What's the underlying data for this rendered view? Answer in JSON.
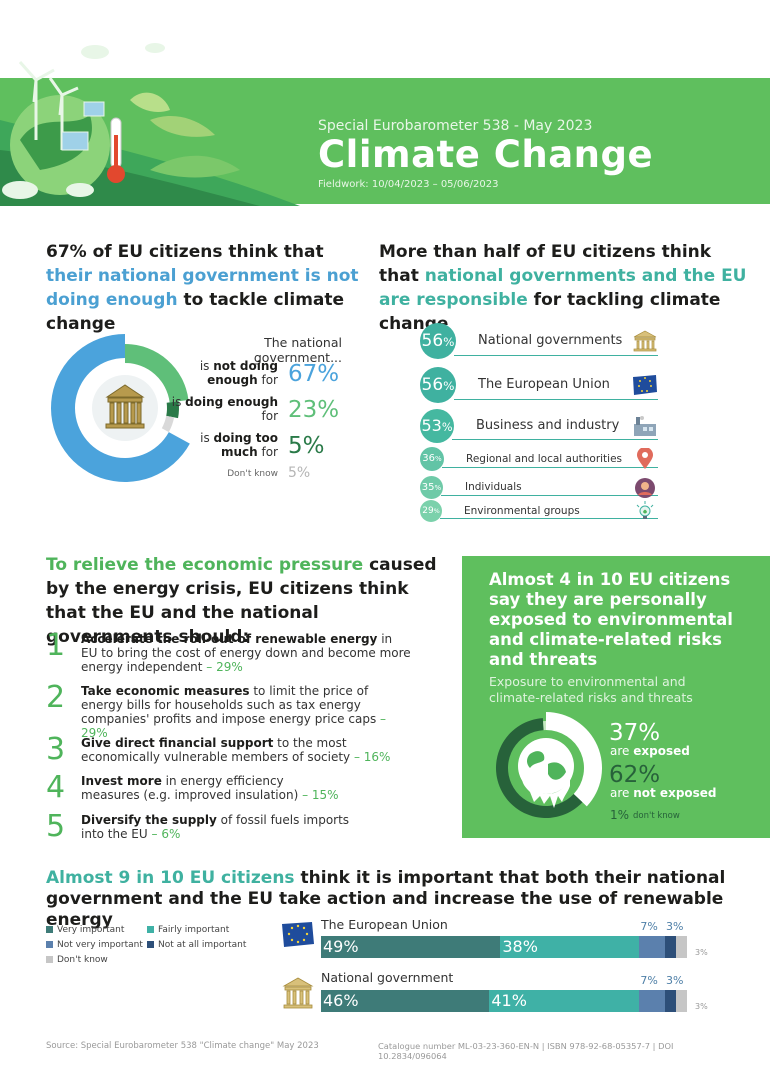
{
  "header": {
    "subtitle": "Special Eurobarometer 538 - May 2023",
    "title": "Climate Change",
    "fieldwork": "Fieldwork: 10/04/2023 – 05/06/2023"
  },
  "section1": {
    "title_pre": "67% of EU citizens think that ",
    "title_highlight": "their national government is not doing enough",
    "title_post": " to tackle climate change",
    "header": "The national government...",
    "rows": [
      {
        "pre": "is ",
        "bold": "not doing enough",
        "post": " for",
        "value": "67%"
      },
      {
        "pre": "is ",
        "bold": "doing enough",
        "post": " for",
        "value": "23%"
      },
      {
        "pre": "is ",
        "bold": "doing too much",
        "post": " for",
        "value": "5%"
      }
    ],
    "dont_know_label": "Don't know",
    "dont_know_value": "5%",
    "chart_values": [
      67,
      23,
      5,
      5
    ],
    "colors": [
      "#4ba3dc",
      "#5fbf79",
      "#2a7a48",
      "#d9d9d9"
    ]
  },
  "section2": {
    "title_pre": "More than half of EU citizens think that ",
    "title_highlight": "national governments and the EU are responsible",
    "title_post": " for tackling climate change",
    "items": [
      {
        "value": "56",
        "unit": "%",
        "label": "National governments",
        "icon": "building-icon"
      },
      {
        "value": "56",
        "unit": "%",
        "label": "The European Union",
        "icon": "eu-flag-icon"
      },
      {
        "value": "53",
        "unit": "%",
        "label": "Business and industry",
        "icon": "factory-icon"
      },
      {
        "value": "36",
        "unit": "%",
        "label": "Regional and local authorities",
        "icon": "location-pin-icon"
      },
      {
        "value": "35",
        "unit": "%",
        "label": "Individuals",
        "icon": "person-icon"
      },
      {
        "value": "29",
        "unit": "%",
        "label": "Environmental groups",
        "icon": "bulb-icon"
      }
    ]
  },
  "section3": {
    "title_highlight": "To relieve the economic pressure",
    "title_post": " caused by the energy crisis, EU citizens think that the EU and the national governments should:",
    "items": [
      {
        "num": "1",
        "bold": "Accelerate the roll-out of renewable energy",
        "text": " in EU to bring the cost of energy down and become more energy independent",
        "pct": " – 29%"
      },
      {
        "num": "2",
        "bold": "Take economic measures",
        "text": " to limit the price of energy bills for households such as tax energy companies' profits and impose energy price caps",
        "pct": " – 29%"
      },
      {
        "num": "3",
        "bold": "Give direct financial support",
        "text": " to the most economically vulnerable members of society",
        "pct": " – 16%"
      },
      {
        "num": "4",
        "bold": "Invest more",
        "text": " in energy efficiency measures (e.g. improved insulation)",
        "pct": " – 15%"
      },
      {
        "num": "5",
        "bold": "Diversify the supply",
        "text": " of fossil fuels imports into the EU",
        "pct": " – 6%"
      }
    ]
  },
  "exposure": {
    "title": "Almost 4 in 10 EU citizens say they are personally exposed to environmental and climate-related risks and threats",
    "subtitle": "Exposure to environmental and climate-related risks and threats",
    "exposed_value": "37%",
    "exposed_label_pre": "are ",
    "exposed_label_bold": "exposed",
    "not_exposed_value": "62%",
    "not_exposed_label_pre": "are ",
    "not_exposed_label_bold": "not exposed",
    "dk_value": "1%",
    "dk_label": "don't know",
    "chart_values": [
      37,
      62,
      1
    ]
  },
  "section4": {
    "title_highlight": "Almost 9 in 10 EU citizens",
    "title_post": " think it is important that both their national government and the EU take action and increase the use of renewable energy",
    "legend": [
      {
        "label": "Very important",
        "color": "#3e7b78"
      },
      {
        "label": "Fairly important",
        "color": "#3fb1a6"
      },
      {
        "label": "Not very important",
        "color": "#5b80ad"
      },
      {
        "label": "Not at all important",
        "color": "#2d4f79"
      },
      {
        "label": "Don't know",
        "color": "#c6c6c6"
      }
    ],
    "bars": [
      {
        "title": "The European Union",
        "icon": "eu-flag-icon",
        "values": [
          49,
          38,
          7,
          3,
          3
        ],
        "labels": [
          "49%",
          "38%",
          "7%",
          "3%",
          "3%"
        ]
      },
      {
        "title": "National government",
        "icon": "building-icon",
        "values": [
          46,
          41,
          7,
          3,
          3
        ],
        "labels": [
          "46%",
          "41%",
          "7%",
          "3%",
          "3%"
        ]
      }
    ]
  },
  "footer": {
    "source": "Source: Special Eurobarometer 538 \"Climate change\" May 2023",
    "catalogue": "Catalogue number  ML-03-23-360-EN-N  |  ISBN  978-92-68-05357-7  |  DOI  10.2834/096064"
  }
}
